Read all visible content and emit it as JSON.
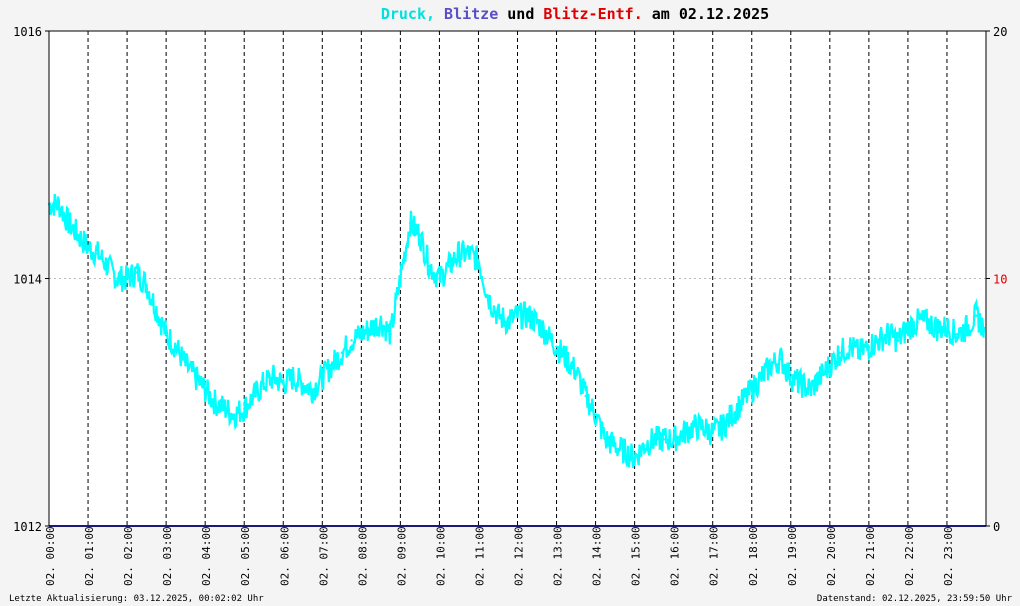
{
  "header": {
    "title_parts": [
      {
        "text": "Druck,",
        "color": "#00e0e0"
      },
      {
        "text": "Blitze",
        "color": "#5a4fc8"
      },
      {
        "text": "und",
        "color": "#000000"
      },
      {
        "text": "Blitz-Entf.",
        "color": "#e00000"
      },
      {
        "text": "am 02.12.2025",
        "color": "#000000"
      }
    ]
  },
  "footer": {
    "left_text": "Letzte Aktualisierung: 03.12.2025, 00:02:02 Uhr",
    "right_text": "Datenstand: 02.12.2025, 23:59:50 Uhr"
  },
  "chart_data": {
    "type": "line",
    "x_unit": "hours",
    "xlim": [
      0,
      24
    ],
    "x_ticks": [
      {
        "x": 0,
        "label": "02. 00:00"
      },
      {
        "x": 1,
        "label": "02. 01:00"
      },
      {
        "x": 2,
        "label": "02. 02:00"
      },
      {
        "x": 3,
        "label": "02. 03:00"
      },
      {
        "x": 4,
        "label": "02. 04:00"
      },
      {
        "x": 5,
        "label": "02. 05:00"
      },
      {
        "x": 6,
        "label": "02. 06:00"
      },
      {
        "x": 7,
        "label": "02. 07:00"
      },
      {
        "x": 8,
        "label": "02. 08:00"
      },
      {
        "x": 9,
        "label": "02. 09:00"
      },
      {
        "x": 10,
        "label": "02. 10:00"
      },
      {
        "x": 11,
        "label": "02. 11:00"
      },
      {
        "x": 12,
        "label": "02. 12:00"
      },
      {
        "x": 13,
        "label": "02. 13:00"
      },
      {
        "x": 14,
        "label": "02. 14:00"
      },
      {
        "x": 15,
        "label": "02. 15:00"
      },
      {
        "x": 16,
        "label": "02. 16:00"
      },
      {
        "x": 17,
        "label": "02. 17:00"
      },
      {
        "x": 18,
        "label": "02. 18:00"
      },
      {
        "x": 19,
        "label": "02. 19:00"
      },
      {
        "x": 20,
        "label": "02. 20:00"
      },
      {
        "x": 21,
        "label": "02. 21:00"
      },
      {
        "x": 22,
        "label": "02. 22:00"
      },
      {
        "x": 23,
        "label": "02. 23:00"
      }
    ],
    "y_left": {
      "ylim": [
        1012,
        1016
      ],
      "ticks": [
        1012,
        1014,
        1016
      ],
      "color": "#000000"
    },
    "y_right": {
      "ylim": [
        0,
        20
      ],
      "ticks": [
        0,
        10,
        20
      ],
      "tick_colors": [
        "#000000",
        "#e00000",
        "#000000"
      ]
    },
    "grid": {
      "horizontal": "dotted",
      "vertical": "dashed"
    },
    "series": [
      {
        "name": "Druck",
        "axis": "left",
        "color": "#00ffff",
        "x": [
          0.0,
          0.25,
          0.5,
          0.75,
          1.0,
          1.25,
          1.5,
          1.75,
          2.0,
          2.25,
          2.5,
          2.75,
          3.0,
          3.25,
          3.5,
          3.75,
          4.0,
          4.25,
          4.5,
          4.75,
          5.0,
          5.25,
          5.5,
          5.75,
          6.0,
          6.25,
          6.5,
          6.75,
          7.0,
          7.25,
          7.5,
          7.75,
          8.0,
          8.25,
          8.5,
          8.75,
          9.0,
          9.25,
          9.5,
          9.75,
          10.0,
          10.25,
          10.5,
          10.75,
          11.0,
          11.25,
          11.5,
          11.75,
          12.0,
          12.25,
          12.5,
          12.75,
          13.0,
          13.25,
          13.5,
          13.75,
          14.0,
          14.25,
          14.5,
          14.75,
          15.0,
          15.25,
          15.5,
          15.75,
          16.0,
          16.25,
          16.5,
          16.75,
          17.0,
          17.25,
          17.5,
          17.75,
          18.0,
          18.25,
          18.5,
          18.75,
          19.0,
          19.25,
          19.5,
          19.75,
          20.0,
          20.25,
          20.5,
          20.75,
          21.0,
          21.25,
          21.5,
          21.75,
          22.0,
          22.25,
          22.5,
          22.75,
          23.0,
          23.25,
          23.5,
          23.75,
          23.95
        ],
        "y": [
          1014.6,
          1014.6,
          1014.45,
          1014.35,
          1014.25,
          1014.2,
          1014.1,
          1014.0,
          1014.0,
          1014.05,
          1013.95,
          1013.75,
          1013.55,
          1013.45,
          1013.3,
          1013.2,
          1013.1,
          1013.0,
          1012.95,
          1012.9,
          1012.95,
          1013.05,
          1013.15,
          1013.2,
          1013.15,
          1013.2,
          1013.15,
          1013.1,
          1013.2,
          1013.3,
          1013.4,
          1013.5,
          1013.55,
          1013.6,
          1013.65,
          1013.55,
          1014.0,
          1014.45,
          1014.35,
          1014.1,
          1014.0,
          1014.1,
          1014.2,
          1014.2,
          1014.15,
          1013.85,
          1013.7,
          1013.65,
          1013.7,
          1013.7,
          1013.65,
          1013.55,
          1013.45,
          1013.35,
          1013.25,
          1013.05,
          1012.9,
          1012.7,
          1012.65,
          1012.6,
          1012.55,
          1012.65,
          1012.7,
          1012.7,
          1012.7,
          1012.75,
          1012.8,
          1012.8,
          1012.75,
          1012.8,
          1012.9,
          1013.0,
          1013.1,
          1013.2,
          1013.3,
          1013.35,
          1013.2,
          1013.15,
          1013.1,
          1013.2,
          1013.3,
          1013.4,
          1013.45,
          1013.4,
          1013.45,
          1013.5,
          1013.55,
          1013.5,
          1013.6,
          1013.65,
          1013.65,
          1013.6,
          1013.6,
          1013.55,
          1013.6,
          1013.7,
          1013.6
        ]
      },
      {
        "name": "Blitze",
        "axis": "right",
        "color": "#5a4fc8",
        "x": [
          0,
          24
        ],
        "y": [
          0,
          0
        ]
      },
      {
        "name": "Blitz-Entf.",
        "axis": "right",
        "color": "#e00000",
        "x": [],
        "y": []
      }
    ]
  }
}
